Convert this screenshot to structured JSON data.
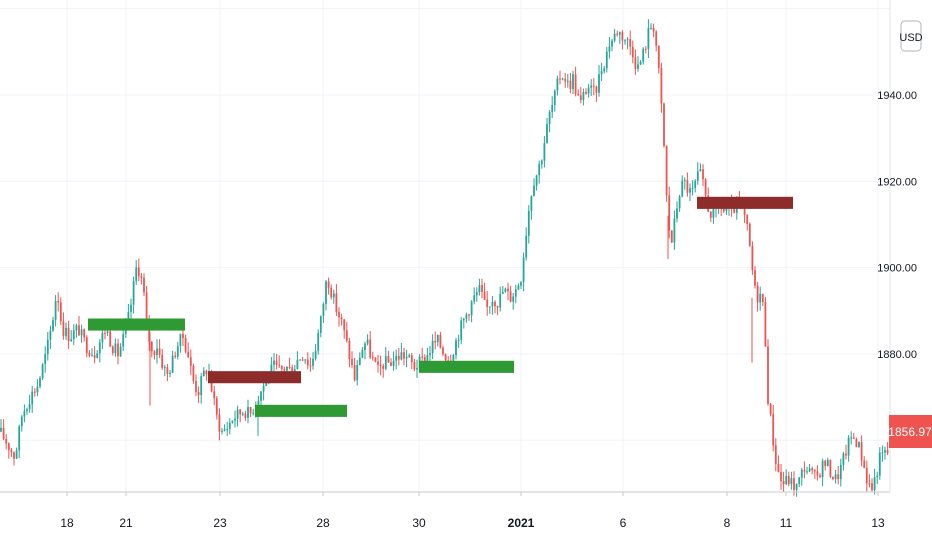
{
  "chart_data": {
    "type": "candlestick",
    "currency": "USD",
    "last_price": "1856.97",
    "colors": {
      "up": "#26a69a",
      "down": "#ef5350",
      "last_price_bg": "#ef5350",
      "zone_support": "#2e9a34",
      "zone_resistance": "#8e2b2b",
      "grid": "#f0f3fa",
      "axis_line": "#c8cbd3"
    },
    "y_axis": {
      "range": [
        1848,
        1962
      ],
      "ticks": [
        {
          "value": 1880,
          "label": "1880.00"
        },
        {
          "value": 1900,
          "label": "1900.00"
        },
        {
          "value": 1920,
          "label": "1920.00"
        },
        {
          "value": 1940,
          "label": "1940.00"
        }
      ]
    },
    "x_axis": {
      "range": [
        0,
        890
      ],
      "ticks": [
        {
          "pos": 67,
          "label": "18",
          "bold": false
        },
        {
          "pos": 126,
          "label": "21",
          "bold": false
        },
        {
          "pos": 220,
          "label": "23",
          "bold": false
        },
        {
          "pos": 323,
          "label": "28",
          "bold": false
        },
        {
          "pos": 419,
          "label": "30",
          "bold": false
        },
        {
          "pos": 521,
          "label": "2021",
          "bold": true
        },
        {
          "pos": 623,
          "label": "6",
          "bold": false
        },
        {
          "pos": 727,
          "label": "8",
          "bold": false
        },
        {
          "pos": 786,
          "label": "11",
          "bold": false
        },
        {
          "pos": 878,
          "label": "13",
          "bold": false
        }
      ]
    },
    "zones": [
      {
        "kind": "support",
        "x0": 88,
        "x1": 185,
        "y0": 1885.4,
        "y1": 1888.2
      },
      {
        "kind": "resistance",
        "x0": 208,
        "x1": 301,
        "y0": 1873.2,
        "y1": 1876.0
      },
      {
        "kind": "support",
        "x0": 255,
        "x1": 347,
        "y0": 1865.4,
        "y1": 1868.2
      },
      {
        "kind": "support",
        "x0": 419,
        "x1": 514,
        "y0": 1875.6,
        "y1": 1878.4
      },
      {
        "kind": "resistance",
        "x0": 697,
        "x1": 793,
        "y0": 1913.6,
        "y1": 1916.4
      }
    ],
    "price_path": [
      [
        0,
        1862
      ],
      [
        8,
        1859
      ],
      [
        15,
        1856
      ],
      [
        22,
        1866
      ],
      [
        30,
        1870
      ],
      [
        38,
        1873
      ],
      [
        46,
        1880
      ],
      [
        52,
        1887
      ],
      [
        57,
        1895
      ],
      [
        62,
        1886
      ],
      [
        70,
        1884
      ],
      [
        78,
        1886
      ],
      [
        86,
        1882
      ],
      [
        94,
        1880
      ],
      [
        100,
        1883
      ],
      [
        106,
        1886
      ],
      [
        112,
        1882
      ],
      [
        118,
        1880
      ],
      [
        124,
        1884
      ],
      [
        130,
        1890
      ],
      [
        137,
        1901
      ],
      [
        143,
        1896
      ],
      [
        147,
        1886
      ],
      [
        152,
        1880
      ],
      [
        157,
        1882
      ],
      [
        162,
        1878
      ],
      [
        167,
        1875
      ],
      [
        172,
        1878
      ],
      [
        177,
        1882
      ],
      [
        183,
        1884
      ],
      [
        188,
        1880
      ],
      [
        193,
        1874
      ],
      [
        198,
        1871
      ],
      [
        203,
        1875
      ],
      [
        208,
        1877
      ],
      [
        213,
        1870
      ],
      [
        218,
        1864
      ],
      [
        222,
        1862
      ],
      [
        227,
        1863
      ],
      [
        232,
        1865
      ],
      [
        238,
        1866
      ],
      [
        244,
        1867
      ],
      [
        250,
        1866
      ],
      [
        256,
        1869
      ],
      [
        262,
        1872
      ],
      [
        268,
        1875
      ],
      [
        274,
        1877
      ],
      [
        280,
        1876
      ],
      [
        286,
        1877
      ],
      [
        292,
        1876
      ],
      [
        298,
        1879
      ],
      [
        304,
        1880
      ],
      [
        310,
        1877
      ],
      [
        316,
        1882
      ],
      [
        321,
        1888
      ],
      [
        327,
        1898
      ],
      [
        332,
        1894
      ],
      [
        337,
        1890
      ],
      [
        342,
        1887
      ],
      [
        347,
        1882
      ],
      [
        351,
        1878
      ],
      [
        355,
        1874
      ],
      [
        360,
        1880
      ],
      [
        366,
        1883
      ],
      [
        372,
        1879
      ],
      [
        378,
        1876
      ],
      [
        384,
        1878
      ],
      [
        390,
        1878
      ],
      [
        396,
        1879
      ],
      [
        402,
        1880
      ],
      [
        408,
        1879
      ],
      [
        414,
        1877
      ],
      [
        420,
        1878
      ],
      [
        426,
        1879
      ],
      [
        432,
        1882
      ],
      [
        438,
        1883
      ],
      [
        444,
        1880
      ],
      [
        450,
        1879
      ],
      [
        456,
        1883
      ],
      [
        462,
        1887
      ],
      [
        468,
        1890
      ],
      [
        474,
        1893
      ],
      [
        480,
        1895
      ],
      [
        486,
        1890
      ],
      [
        492,
        1893
      ],
      [
        498,
        1892
      ],
      [
        504,
        1895
      ],
      [
        510,
        1893
      ],
      [
        516,
        1895
      ],
      [
        521,
        1898
      ],
      [
        525,
        1906
      ],
      [
        529,
        1914
      ],
      [
        533,
        1920
      ],
      [
        537,
        1922
      ],
      [
        541,
        1925
      ],
      [
        545,
        1930
      ],
      [
        549,
        1935
      ],
      [
        553,
        1938
      ],
      [
        557,
        1942
      ],
      [
        561,
        1945
      ],
      [
        565,
        1944
      ],
      [
        569,
        1942
      ],
      [
        573,
        1944
      ],
      [
        577,
        1940
      ],
      [
        581,
        1938
      ],
      [
        585,
        1941
      ],
      [
        589,
        1942
      ],
      [
        593,
        1940
      ],
      [
        597,
        1942
      ],
      [
        601,
        1946
      ],
      [
        605,
        1948
      ],
      [
        609,
        1952
      ],
      [
        613,
        1953
      ],
      [
        617,
        1955
      ],
      [
        621,
        1954
      ],
      [
        625,
        1953
      ],
      [
        629,
        1952
      ],
      [
        633,
        1950
      ],
      [
        637,
        1946
      ],
      [
        641,
        1948
      ],
      [
        645,
        1951
      ],
      [
        649,
        1955
      ],
      [
        653,
        1957
      ],
      [
        656,
        1952
      ],
      [
        660,
        1942
      ],
      [
        664,
        1928
      ],
      [
        668,
        1910
      ],
      [
        672,
        1906
      ],
      [
        676,
        1913
      ],
      [
        680,
        1918
      ],
      [
        684,
        1920
      ],
      [
        688,
        1918
      ],
      [
        692,
        1917
      ],
      [
        696,
        1920
      ],
      [
        700,
        1922
      ],
      [
        704,
        1918
      ],
      [
        708,
        1914
      ],
      [
        712,
        1912
      ],
      [
        716,
        1913
      ],
      [
        720,
        1915
      ],
      [
        724,
        1913
      ],
      [
        728,
        1914
      ],
      [
        732,
        1912
      ],
      [
        736,
        1915
      ],
      [
        740,
        1914
      ],
      [
        744,
        1912
      ],
      [
        748,
        1908
      ],
      [
        752,
        1900
      ],
      [
        756,
        1893
      ],
      [
        760,
        1894
      ],
      [
        764,
        1890
      ],
      [
        768,
        1870
      ],
      [
        772,
        1862
      ],
      [
        776,
        1855
      ],
      [
        780,
        1851
      ],
      [
        784,
        1850
      ],
      [
        788,
        1851
      ],
      [
        792,
        1850
      ],
      [
        796,
        1849
      ],
      [
        800,
        1851
      ],
      [
        804,
        1854
      ],
      [
        808,
        1853
      ],
      [
        812,
        1852
      ],
      [
        816,
        1851
      ],
      [
        820,
        1853
      ],
      [
        824,
        1855
      ],
      [
        828,
        1854
      ],
      [
        832,
        1852
      ],
      [
        836,
        1851
      ],
      [
        840,
        1853
      ],
      [
        844,
        1856
      ],
      [
        848,
        1859
      ],
      [
        852,
        1861
      ],
      [
        856,
        1860
      ],
      [
        860,
        1858
      ],
      [
        864,
        1854
      ],
      [
        868,
        1850
      ],
      [
        872,
        1849
      ],
      [
        876,
        1852
      ],
      [
        880,
        1856
      ],
      [
        884,
        1857
      ],
      [
        888,
        1857
      ]
    ]
  }
}
